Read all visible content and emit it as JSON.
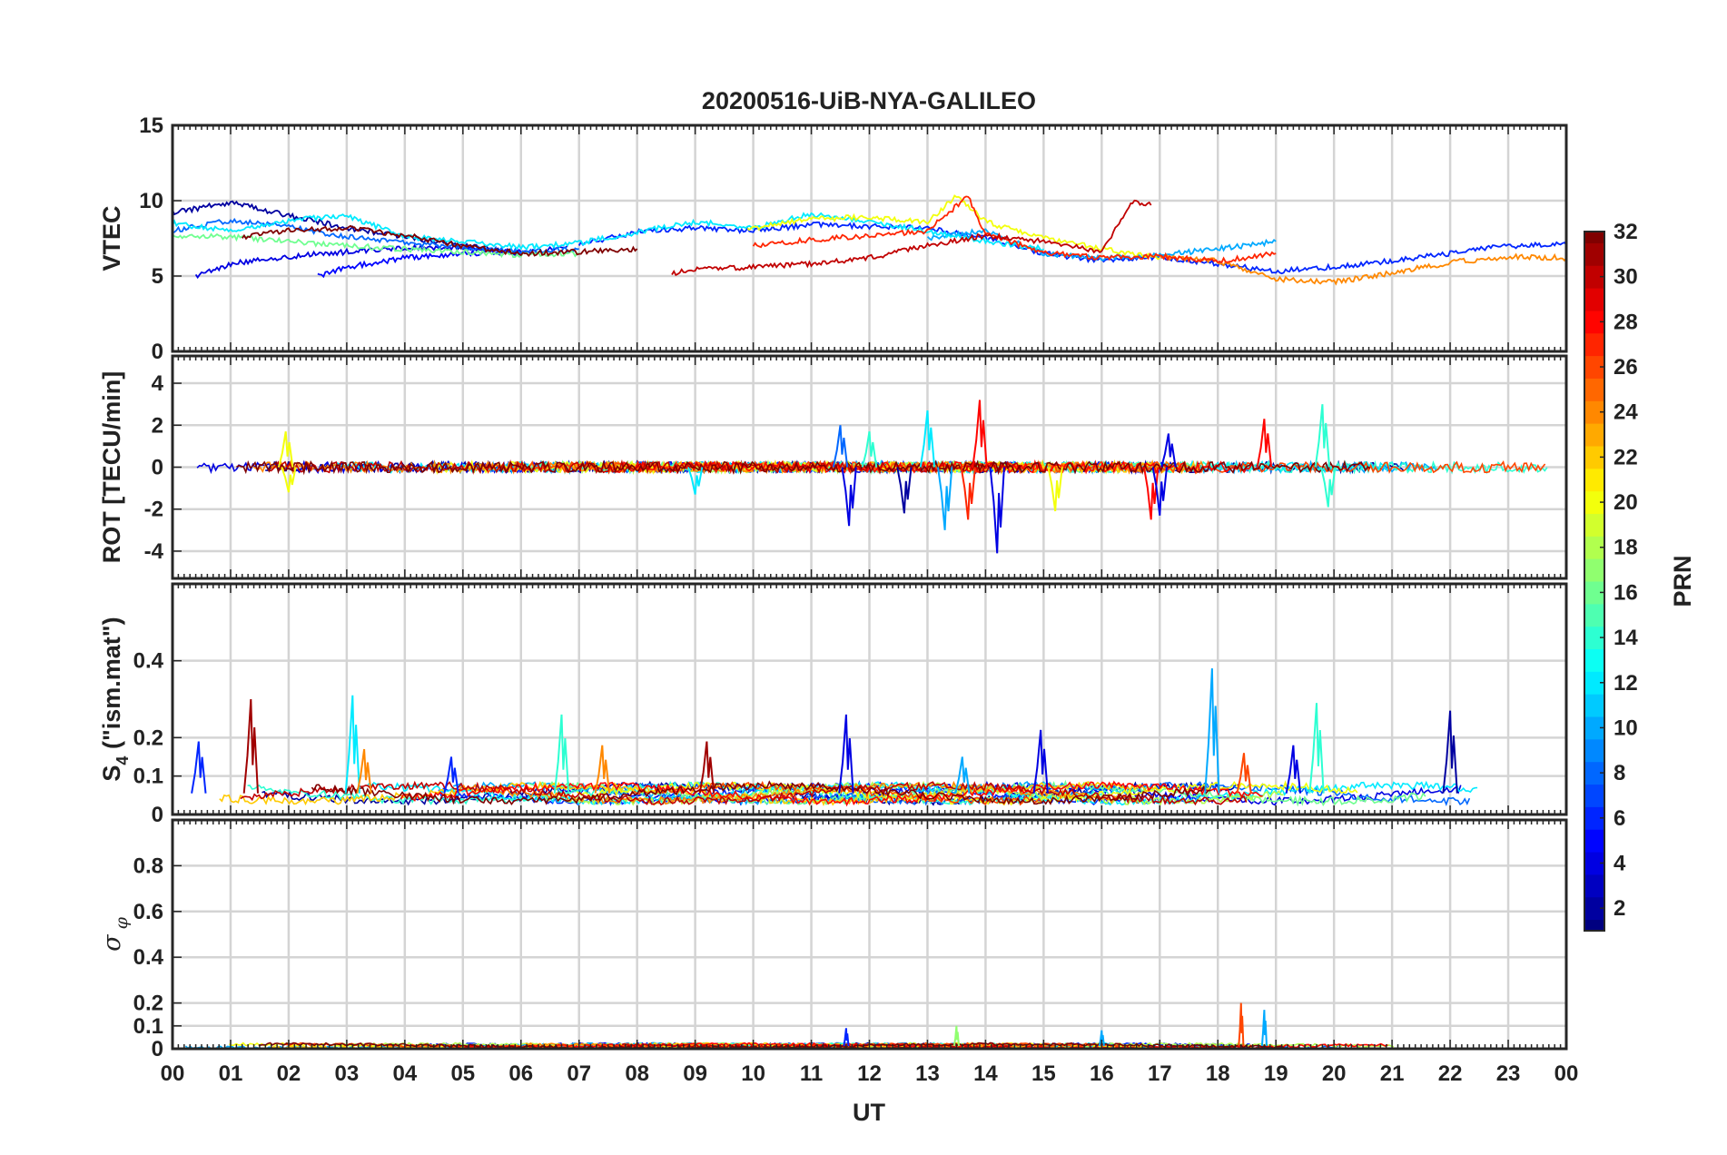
{
  "chart_data": {
    "type": "line",
    "title": "20200516-UiB-NYA-GALILEO",
    "xlabel": "UT",
    "x_ticks": [
      "00",
      "01",
      "02",
      "03",
      "04",
      "05",
      "06",
      "07",
      "08",
      "09",
      "10",
      "11",
      "12",
      "13",
      "14",
      "15",
      "16",
      "17",
      "18",
      "19",
      "20",
      "21",
      "22",
      "23",
      "00"
    ],
    "xlim_hours": [
      0,
      24
    ],
    "grid": true,
    "colorbar": {
      "label": "PRN",
      "colormap": "jet",
      "range": [
        1,
        32
      ],
      "ticks": [
        2,
        4,
        6,
        8,
        10,
        12,
        14,
        16,
        18,
        20,
        22,
        24,
        26,
        28,
        30,
        32
      ],
      "placement": "right"
    },
    "panels": [
      {
        "id": "vtec",
        "ylabel": "VTEC",
        "ylim": [
          0,
          15
        ],
        "yticks": [
          0,
          5,
          10,
          15
        ],
        "description_series": "approximate traces per PRN",
        "series": [
          {
            "prn": 2,
            "x": [
              0,
              1,
              2,
              3,
              4,
              5,
              6
            ],
            "y": [
              9.2,
              9.9,
              9.0,
              8.2,
              7.6,
              7.0,
              6.6
            ]
          },
          {
            "prn": 4,
            "x": [
              0.4,
              1,
              2,
              3,
              4,
              5,
              6,
              6.8
            ],
            "y": [
              5.0,
              5.8,
              6.3,
              6.6,
              6.9,
              6.8,
              6.5,
              7.0
            ]
          },
          {
            "prn": 5,
            "x": [
              2.5,
              3,
              4,
              5,
              6
            ],
            "y": [
              5.0,
              5.6,
              6.2,
              6.5,
              6.6
            ]
          },
          {
            "prn": 6,
            "x": [
              7,
              8,
              9,
              10,
              11,
              12,
              13,
              14,
              15,
              16,
              17,
              18,
              19,
              20,
              21,
              22,
              23,
              24
            ],
            "y": [
              7.1,
              7.9,
              8.2,
              8.0,
              8.4,
              8.3,
              8.2,
              7.5,
              6.5,
              6.0,
              6.3,
              5.8,
              5.3,
              5.6,
              6.0,
              6.5,
              7.0,
              7.1
            ]
          },
          {
            "prn": 8,
            "x": [
              0,
              1,
              2,
              3,
              4,
              5,
              6,
              7
            ],
            "y": [
              8.0,
              8.7,
              8.3,
              7.6,
              7.2,
              6.9,
              6.6,
              6.8
            ]
          },
          {
            "prn": 10,
            "x": [
              13,
              14,
              15,
              16,
              17,
              18,
              19
            ],
            "y": [
              7.5,
              8.0,
              6.5,
              6.2,
              6.4,
              6.8,
              7.3
            ]
          },
          {
            "prn": 12,
            "x": [
              0,
              1,
              2,
              3,
              4,
              5,
              6,
              7,
              8,
              9,
              10,
              11,
              12,
              13,
              14,
              15
            ],
            "y": [
              8.5,
              8.0,
              8.7,
              9.0,
              7.6,
              7.3,
              6.9,
              7.2,
              7.9,
              8.6,
              8.2,
              9.1,
              8.6,
              8.0,
              7.3,
              6.8
            ]
          },
          {
            "prn": 16,
            "x": [
              0,
              1,
              2,
              3,
              4,
              5,
              6,
              7
            ],
            "y": [
              7.7,
              7.6,
              7.3,
              7.0,
              6.8,
              6.6,
              6.4,
              6.5
            ]
          },
          {
            "prn": 20,
            "x": [
              9.9,
              11,
              12,
              13,
              13.5,
              14,
              15,
              16,
              17
            ],
            "y": [
              8.1,
              8.8,
              8.9,
              8.6,
              10.3,
              8.6,
              7.5,
              6.8,
              6.2
            ]
          },
          {
            "prn": 24,
            "x": [
              17,
              18,
              19,
              20,
              21,
              22,
              23,
              24
            ],
            "y": [
              6.3,
              6.0,
              4.8,
              4.6,
              5.2,
              5.9,
              6.3,
              6.2
            ]
          },
          {
            "prn": 27,
            "x": [
              10,
              11,
              12,
              13,
              13.7,
              14,
              15,
              16,
              17,
              18,
              19
            ],
            "y": [
              7.0,
              7.4,
              7.7,
              8.0,
              10.3,
              7.8,
              6.6,
              6.2,
              6.3,
              6.0,
              6.5
            ]
          },
          {
            "prn": 30,
            "x": [
              8.6,
              9,
              10,
              11,
              12,
              13,
              14,
              15,
              16,
              16.5,
              16.85
            ],
            "y": [
              5.2,
              5.4,
              5.6,
              5.8,
              6.2,
              7.0,
              7.7,
              7.3,
              6.6,
              9.9,
              9.7
            ]
          },
          {
            "prn": 32,
            "x": [
              1.2,
              2,
              3,
              4,
              5,
              6,
              7,
              8
            ],
            "y": [
              7.6,
              8.0,
              8.2,
              7.7,
              7.0,
              6.5,
              6.6,
              6.8
            ]
          }
        ]
      },
      {
        "id": "rot",
        "ylabel": "ROT [TECU/min]",
        "ylim": [
          -5.3,
          5.3
        ],
        "yticks": [
          -4,
          -2,
          0,
          2,
          4
        ],
        "spikes": [
          {
            "prn": 20,
            "t": 1.95,
            "v": 1.7
          },
          {
            "prn": 20,
            "t": 2.0,
            "v": -1.2
          },
          {
            "prn": 12,
            "t": 9.0,
            "v": -1.3
          },
          {
            "prn": 8,
            "t": 11.5,
            "v": 2.0
          },
          {
            "prn": 4,
            "t": 11.65,
            "v": -2.8
          },
          {
            "prn": 14,
            "t": 12.0,
            "v": 1.7
          },
          {
            "prn": 2,
            "t": 12.6,
            "v": -2.2
          },
          {
            "prn": 12,
            "t": 13.0,
            "v": 2.7
          },
          {
            "prn": 10,
            "t": 13.3,
            "v": -3.0
          },
          {
            "prn": 27,
            "t": 13.7,
            "v": -2.5
          },
          {
            "prn": 28,
            "t": 13.9,
            "v": 3.2
          },
          {
            "prn": 4,
            "t": 14.2,
            "v": -4.1
          },
          {
            "prn": 20,
            "t": 15.2,
            "v": -2.1
          },
          {
            "prn": 28,
            "t": 16.85,
            "v": -2.5
          },
          {
            "prn": 4,
            "t": 17.0,
            "v": -2.3
          },
          {
            "prn": 4,
            "t": 17.15,
            "v": 1.6
          },
          {
            "prn": 28,
            "t": 18.8,
            "v": 2.3
          },
          {
            "prn": 14,
            "t": 19.8,
            "v": 3.0
          },
          {
            "prn": 14,
            "t": 19.9,
            "v": -1.9
          }
        ]
      },
      {
        "id": "s4",
        "ylabel": "S4 (\"ism.mat\")",
        "ylim": [
          0,
          0.6
        ],
        "yticks": [
          0,
          0.1,
          0.2,
          0.4
        ],
        "spikes": [
          {
            "prn": 6,
            "t": 0.45,
            "v": 0.19
          },
          {
            "prn": 31,
            "t": 1.35,
            "v": 0.3
          },
          {
            "prn": 12,
            "t": 3.1,
            "v": 0.31
          },
          {
            "prn": 24,
            "t": 3.3,
            "v": 0.17
          },
          {
            "prn": 6,
            "t": 4.8,
            "v": 0.15
          },
          {
            "prn": 14,
            "t": 6.7,
            "v": 0.26
          },
          {
            "prn": 24,
            "t": 7.4,
            "v": 0.18
          },
          {
            "prn": 31,
            "t": 9.2,
            "v": 0.19
          },
          {
            "prn": 4,
            "t": 11.6,
            "v": 0.26
          },
          {
            "prn": 10,
            "t": 13.6,
            "v": 0.15
          },
          {
            "prn": 4,
            "t": 14.95,
            "v": 0.22
          },
          {
            "prn": 10,
            "t": 17.9,
            "v": 0.38
          },
          {
            "prn": 26,
            "t": 18.45,
            "v": 0.16
          },
          {
            "prn": 14,
            "t": 19.7,
            "v": 0.29
          },
          {
            "prn": 4,
            "t": 19.3,
            "v": 0.18
          },
          {
            "prn": 2,
            "t": 22.0,
            "v": 0.27
          }
        ]
      },
      {
        "id": "sigma_phi",
        "ylabel": "σ φ",
        "ylim": [
          0,
          1
        ],
        "yticks": [
          0,
          0.1,
          0.2,
          0.4,
          0.6,
          0.8
        ],
        "spikes": [
          {
            "prn": 26,
            "t": 18.4,
            "v": 0.2
          },
          {
            "prn": 10,
            "t": 18.8,
            "v": 0.17
          },
          {
            "prn": 17,
            "t": 13.5,
            "v": 0.1
          },
          {
            "prn": 6,
            "t": 11.6,
            "v": 0.09
          },
          {
            "prn": 10,
            "t": 16.0,
            "v": 0.08
          }
        ]
      }
    ]
  }
}
